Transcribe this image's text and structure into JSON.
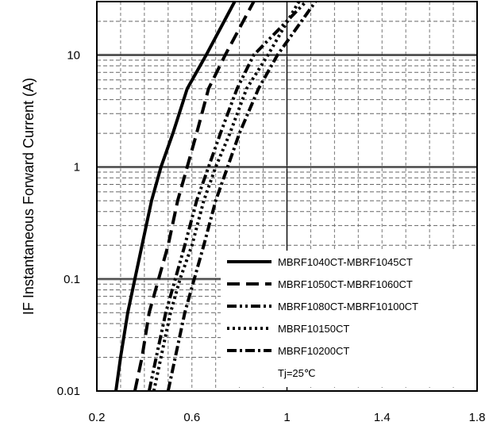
{
  "chart_data": {
    "type": "line",
    "title": "",
    "xlabel": "",
    "ylabel": "IF Instantaneous Forward Current (A)",
    "xlim": [
      0.2,
      1.8
    ],
    "ylim": [
      0.01,
      30
    ],
    "y_scale": "log",
    "x_ticks": [
      "0.2",
      "0.6",
      "1",
      "1.4",
      "1.8"
    ],
    "y_ticks": [
      "0.01",
      "0.1",
      "1",
      "10"
    ],
    "grid": true,
    "legend_location": "bottom-right",
    "annotation": "Tj=25℃",
    "series": [
      {
        "name": "MBRF1040CT-MBRF1045CT",
        "dash": "solid",
        "x": [
          0.28,
          0.3,
          0.33,
          0.36,
          0.39,
          0.43,
          0.47,
          0.52,
          0.58,
          0.66,
          0.78
        ],
        "y": [
          0.01,
          0.02,
          0.05,
          0.1,
          0.2,
          0.5,
          1,
          2,
          5,
          10,
          30
        ]
      },
      {
        "name": "MBRF1050CT-MBRF1060CT",
        "dash": "dash",
        "x": [
          0.36,
          0.39,
          0.42,
          0.46,
          0.5,
          0.54,
          0.58,
          0.62,
          0.67,
          0.74,
          0.86
        ],
        "y": [
          0.01,
          0.02,
          0.05,
          0.1,
          0.2,
          0.5,
          1,
          2,
          5,
          10,
          30
        ]
      },
      {
        "name": "MBRF1080CT-MBRF10100CT",
        "dash": "dashdotdot",
        "x": [
          0.42,
          0.45,
          0.49,
          0.53,
          0.57,
          0.62,
          0.67,
          0.72,
          0.79,
          0.86,
          1.08
        ],
        "y": [
          0.01,
          0.02,
          0.05,
          0.1,
          0.2,
          0.5,
          1,
          2,
          5,
          10,
          30
        ]
      },
      {
        "name": "MBRF10150CT",
        "dash": "dot",
        "x": [
          0.44,
          0.47,
          0.51,
          0.55,
          0.6,
          0.65,
          0.7,
          0.76,
          0.83,
          0.92,
          1.05
        ],
        "y": [
          0.01,
          0.02,
          0.05,
          0.1,
          0.2,
          0.5,
          1,
          2,
          5,
          10,
          30
        ]
      },
      {
        "name": "MBRF10200CT",
        "dash": "dashdot",
        "x": [
          0.5,
          0.53,
          0.57,
          0.61,
          0.65,
          0.7,
          0.75,
          0.8,
          0.88,
          0.96,
          1.12
        ],
        "y": [
          0.01,
          0.02,
          0.05,
          0.1,
          0.2,
          0.5,
          1,
          2,
          5,
          10,
          30
        ]
      }
    ]
  }
}
